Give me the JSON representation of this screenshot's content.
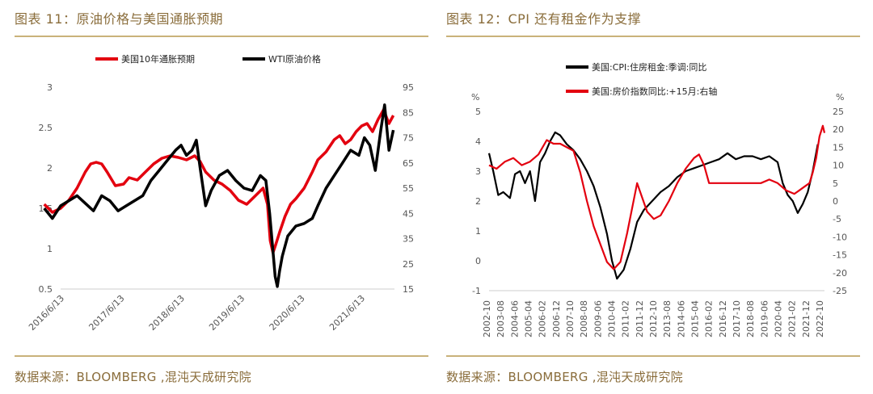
{
  "left_panel": {
    "title": "图表 11：原油价格与美国通胀预期",
    "source": "数据来源：BLOOMBERG ,混沌天成研究院"
  },
  "right_panel": {
    "title": "图表 12：CPI 还有租金作为支撑",
    "source": "数据来源：BLOOMBERG ,混沌天成研究院"
  },
  "colors": {
    "red": "#e3000f",
    "black": "#000000",
    "accent": "#c9b27a"
  },
  "chart_data": [
    {
      "type": "line",
      "y_left_ticks": [
        "3",
        "2.5",
        "2",
        "1.5",
        "1",
        "0.5"
      ],
      "y_left_range": [
        0.5,
        3
      ],
      "y_right_ticks": [
        "95",
        "85",
        "75",
        "65",
        "55",
        "45",
        "35",
        "25",
        "15"
      ],
      "y_right_range": [
        15,
        95
      ],
      "x_ticks": [
        "2016/6/13",
        "2017/6/13",
        "2018/6/13",
        "2019/6/13",
        "2020/6/13",
        "2021/6/13"
      ],
      "x_range": [
        2016.3,
        2022.4
      ],
      "legend_position": "top",
      "series": [
        {
          "name": "美国10年通胀预期",
          "color": "#e3000f",
          "axis": "left",
          "x": [
            2016.0,
            2016.15,
            2016.3,
            2016.45,
            2016.6,
            2016.75,
            2016.85,
            2016.95,
            2017.05,
            2017.15,
            2017.3,
            2017.45,
            2017.55,
            2017.7,
            2017.85,
            2018.0,
            2018.15,
            2018.3,
            2018.45,
            2018.6,
            2018.75,
            2018.85,
            2018.95,
            2019.1,
            2019.25,
            2019.4,
            2019.55,
            2019.7,
            2019.85,
            2020.0,
            2020.08,
            2020.13,
            2020.18,
            2020.23,
            2020.3,
            2020.4,
            2020.5,
            2020.6,
            2020.75,
            2020.9,
            2021.0,
            2021.15,
            2021.3,
            2021.4,
            2021.5,
            2021.6,
            2021.7,
            2021.8,
            2021.9,
            2022.0,
            2022.1,
            2022.2,
            2022.3,
            2022.38
          ],
          "values": [
            1.55,
            1.45,
            1.5,
            1.6,
            1.75,
            1.95,
            2.05,
            2.07,
            2.05,
            1.95,
            1.78,
            1.8,
            1.88,
            1.85,
            1.95,
            2.05,
            2.12,
            2.15,
            2.13,
            2.1,
            2.15,
            2.08,
            1.95,
            1.85,
            1.8,
            1.72,
            1.6,
            1.55,
            1.65,
            1.75,
            1.55,
            1.1,
            0.95,
            1.05,
            1.2,
            1.4,
            1.55,
            1.62,
            1.75,
            1.95,
            2.1,
            2.2,
            2.35,
            2.4,
            2.3,
            2.35,
            2.45,
            2.52,
            2.55,
            2.45,
            2.6,
            2.72,
            2.55,
            2.65
          ]
        },
        {
          "name": "WTI原油价格",
          "color": "#000000",
          "axis": "right",
          "x": [
            2016.0,
            2016.15,
            2016.3,
            2016.45,
            2016.6,
            2016.75,
            2016.9,
            2017.05,
            2017.2,
            2017.35,
            2017.5,
            2017.65,
            2017.8,
            2017.95,
            2018.1,
            2018.25,
            2018.4,
            2018.5,
            2018.6,
            2018.7,
            2018.78,
            2018.85,
            2018.95,
            2019.05,
            2019.2,
            2019.35,
            2019.5,
            2019.65,
            2019.8,
            2019.95,
            2020.05,
            2020.12,
            2020.18,
            2020.22,
            2020.26,
            2020.3,
            2020.35,
            2020.45,
            2020.6,
            2020.75,
            2020.9,
            2021.0,
            2021.15,
            2021.3,
            2021.45,
            2021.6,
            2021.75,
            2021.85,
            2021.95,
            2022.05,
            2022.15,
            2022.22,
            2022.3,
            2022.38
          ],
          "values": [
            47,
            43,
            48,
            50,
            52,
            49,
            46,
            52,
            50,
            46,
            48,
            50,
            52,
            58,
            62,
            66,
            70,
            72,
            68,
            70,
            74,
            63,
            48,
            54,
            60,
            62,
            58,
            55,
            54,
            60,
            58,
            45,
            30,
            20,
            16,
            22,
            28,
            36,
            40,
            41,
            43,
            48,
            55,
            60,
            65,
            70,
            68,
            75,
            72,
            62,
            78,
            88,
            70,
            78
          ]
        }
      ]
    },
    {
      "type": "line",
      "y_left_label": "%",
      "y_right_label": "%",
      "y_left_ticks": [
        "5",
        "4",
        "3",
        "2",
        "1",
        "0",
        "-1"
      ],
      "y_left_range": [
        -1,
        5
      ],
      "y_right_ticks": [
        "25",
        "20",
        "15",
        "10",
        "5",
        "0",
        "-5",
        "-10",
        "-15",
        "-20",
        "-25"
      ],
      "y_right_range": [
        -25,
        25
      ],
      "x_ticks": [
        "2002-10",
        "2003-08",
        "2004-06",
        "2005-04",
        "2006-02",
        "2006-12",
        "2007-10",
        "2008-08",
        "2009-06",
        "2010-04",
        "2011-02",
        "2011-12",
        "2012-10",
        "2013-08",
        "2014-06",
        "2015-04",
        "2016-02",
        "2016-12",
        "2017-10",
        "2018-08",
        "2019-06",
        "2020-04",
        "2021-02",
        "2021-12",
        "2022-10"
      ],
      "x_range": [
        2002.75,
        2022.8
      ],
      "legend_position": "top",
      "series": [
        {
          "name": "美国:CPI:住房租金:季调:同比",
          "color": "#000000",
          "axis": "left",
          "x": [
            2002.75,
            2003.0,
            2003.3,
            2003.6,
            2004.0,
            2004.3,
            2004.6,
            2004.9,
            2005.2,
            2005.5,
            2005.8,
            2006.1,
            2006.4,
            2006.7,
            2007.0,
            2007.4,
            2007.8,
            2008.2,
            2008.6,
            2009.0,
            2009.4,
            2009.8,
            2010.1,
            2010.4,
            2010.8,
            2011.2,
            2011.6,
            2012.0,
            2012.5,
            2013.0,
            2013.5,
            2014.0,
            2014.5,
            2015.0,
            2015.5,
            2016.0,
            2016.5,
            2017.0,
            2017.5,
            2018.0,
            2018.5,
            2019.0,
            2019.5,
            2020.0,
            2020.3,
            2020.6,
            2020.9,
            2021.2,
            2021.5,
            2021.8,
            2022.1,
            2022.4
          ],
          "values": [
            3.6,
            3.0,
            2.2,
            2.3,
            2.1,
            2.9,
            3.0,
            2.6,
            3.0,
            2.0,
            3.3,
            3.6,
            4.0,
            4.3,
            4.2,
            3.9,
            3.7,
            3.4,
            3.0,
            2.5,
            1.8,
            0.9,
            0.0,
            -0.6,
            -0.3,
            0.4,
            1.3,
            1.7,
            2.0,
            2.3,
            2.5,
            2.8,
            3.0,
            3.1,
            3.2,
            3.3,
            3.4,
            3.6,
            3.4,
            3.5,
            3.5,
            3.4,
            3.5,
            3.3,
            2.6,
            2.2,
            2.0,
            1.6,
            1.9,
            2.3,
            3.0,
            3.9
          ]
        },
        {
          "name": "美国:房价指数同比:+15月:右轴",
          "color": "#e3000f",
          "axis": "right",
          "x": [
            2002.75,
            2003.2,
            2003.7,
            2004.2,
            2004.7,
            2005.2,
            2005.7,
            2006.2,
            2006.6,
            2007.0,
            2007.4,
            2007.8,
            2008.2,
            2008.6,
            2009.0,
            2009.4,
            2009.8,
            2010.2,
            2010.6,
            2011.0,
            2011.3,
            2011.6,
            2011.9,
            2012.2,
            2012.6,
            2013.0,
            2013.5,
            2014.0,
            2014.5,
            2015.0,
            2015.3,
            2015.6,
            2015.9,
            2016.2,
            2016.6,
            2017.0,
            2017.5,
            2018.0,
            2018.5,
            2019.0,
            2019.5,
            2020.0,
            2020.5,
            2021.0,
            2021.3,
            2021.6,
            2021.9,
            2022.1,
            2022.3,
            2022.5,
            2022.7,
            2022.8
          ],
          "values": [
            10,
            9,
            11,
            12,
            10,
            11,
            13,
            17,
            16,
            16,
            15,
            14,
            8,
            0,
            -7,
            -12,
            -17,
            -19,
            -17,
            -9,
            -2,
            5,
            1,
            -3,
            -5,
            -4,
            0,
            5,
            9,
            12,
            13,
            10,
            5,
            5,
            5,
            5,
            5,
            5,
            5,
            5,
            6,
            5,
            3,
            2,
            3,
            4,
            5,
            8,
            12,
            18,
            21,
            19
          ]
        }
      ]
    }
  ]
}
